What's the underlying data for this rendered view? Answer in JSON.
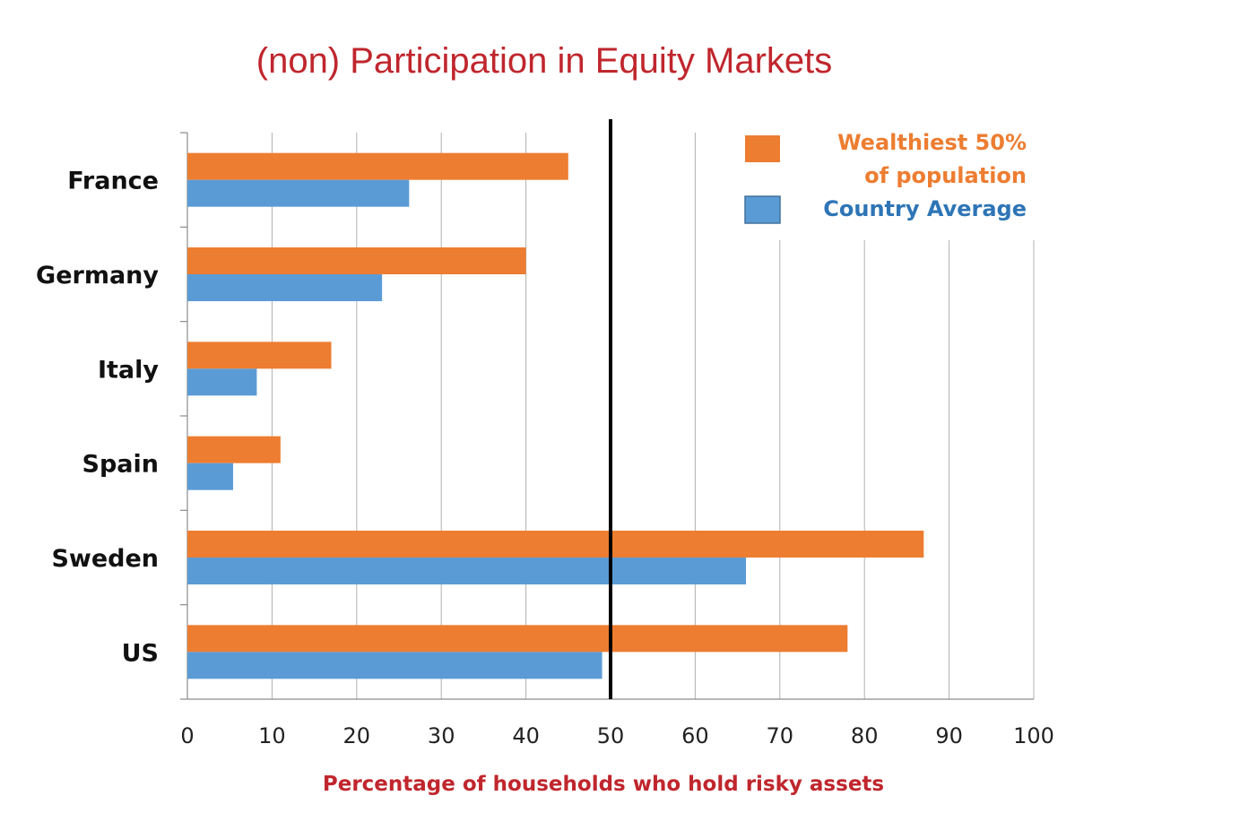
{
  "colors": {
    "wealthiest": "#ed7d31",
    "average": "#5b9bd5",
    "title": "#c0262d",
    "gridline": "#b0b0b0",
    "axis": "#8c8c8c",
    "reference_line": "#000000",
    "legend_wealthiest_text": "#ed7d31",
    "legend_average_text": "#2e75b6"
  },
  "chart_data": {
    "type": "bar",
    "orientation": "horizontal",
    "title": "(non) Participation in Equity Markets",
    "xlabel": "Percentage of households who hold risky assets",
    "ylabel": "",
    "categories": [
      "France",
      "Germany",
      "Italy",
      "Spain",
      "Sweden",
      "US"
    ],
    "series": [
      {
        "name": "Wealthiest 50% of population",
        "legend_lines": [
          "Wealthiest 50%",
          "of population"
        ],
        "values": [
          45,
          40,
          17,
          11,
          87,
          78
        ]
      },
      {
        "name": "Country Average",
        "legend_lines": [
          "Country Average"
        ],
        "values": [
          26.2,
          23,
          8.2,
          5.4,
          66,
          49
        ]
      }
    ],
    "xlim": [
      0,
      100
    ],
    "xticks": [
      "0",
      "10",
      "20",
      "30",
      "40",
      "50",
      "60",
      "70",
      "80",
      "90",
      "100"
    ],
    "reference_line_x": 50,
    "grid": true,
    "legend_position": "top-right"
  }
}
